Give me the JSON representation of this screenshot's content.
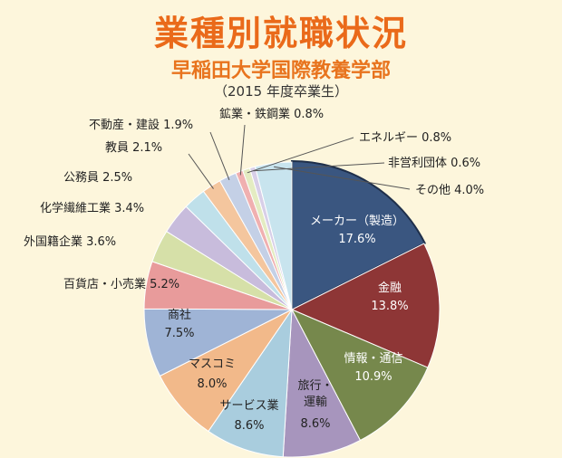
{
  "header": {
    "title": "業種別就職状況",
    "subtitle": "早稲田大学国際教養学部",
    "note": "（2015 年度卒業生）"
  },
  "chart_data": {
    "type": "pie",
    "title": "業種別就職状況",
    "subtitle": "早稲田大学国際教養学部",
    "note": "（2015 年度卒業生）",
    "unit": "%",
    "slices": [
      {
        "name": "メーカー（製造）",
        "value": 17.6,
        "label": "メーカー（製造）",
        "pct": "17.6%",
        "color": "#3a5680",
        "text_color": "#ffffff",
        "placement": "inside"
      },
      {
        "name": "金融",
        "value": 13.8,
        "label": "金融",
        "pct": "13.8%",
        "color": "#8e3636",
        "text_color": "#ffffff",
        "placement": "inside"
      },
      {
        "name": "情報・通信",
        "value": 10.9,
        "label": "情報・通信",
        "pct": "10.9%",
        "color": "#76884c",
        "text_color": "#ffffff",
        "placement": "inside"
      },
      {
        "name": "旅行・運輸",
        "value": 8.6,
        "label": "旅行・運輸",
        "pct": "8.6%",
        "color": "#a795bd",
        "text_color": "#222222",
        "placement": "inside"
      },
      {
        "name": "サービス業",
        "value": 8.6,
        "label": "サービス業",
        "pct": "8.6%",
        "color": "#a9cdde",
        "text_color": "#222222",
        "placement": "inside"
      },
      {
        "name": "マスコミ",
        "value": 8.0,
        "label": "マスコミ",
        "pct": "8.0%",
        "color": "#f2b98a",
        "text_color": "#222222",
        "placement": "inside"
      },
      {
        "name": "商社",
        "value": 7.5,
        "label": "商社",
        "pct": "7.5%",
        "color": "#9fb4d6",
        "text_color": "#222222",
        "placement": "inside"
      },
      {
        "name": "百貨店・小売業",
        "value": 5.2,
        "label": "百貨店・小売業 5.2%",
        "color": "#e89b9b",
        "placement": "outside"
      },
      {
        "name": "外国籍企業",
        "value": 3.6,
        "label": "外国籍企業 3.6%",
        "color": "#d6e0a8",
        "placement": "outside"
      },
      {
        "name": "化学繊維工業",
        "value": 3.4,
        "label": "化学繊維工業 3.4%",
        "color": "#c8bcdc",
        "placement": "outside"
      },
      {
        "name": "公務員",
        "value": 2.5,
        "label": "公務員 2.5%",
        "color": "#bfe0ea",
        "placement": "outside"
      },
      {
        "name": "教員",
        "value": 2.1,
        "label": "教員 2.1%",
        "color": "#f4c69e",
        "placement": "outside"
      },
      {
        "name": "不動産・建設",
        "value": 1.9,
        "label": "不動産・建設 1.9%",
        "color": "#c4d0e6",
        "placement": "outside"
      },
      {
        "name": "鉱業・鉄鋼業",
        "value": 0.8,
        "label": "鉱業・鉄鋼業 0.8%",
        "color": "#f0b0b0",
        "placement": "outside"
      },
      {
        "name": "エネルギー",
        "value": 0.8,
        "label": "エネルギー 0.8%",
        "color": "#e4ecc2",
        "placement": "outside"
      },
      {
        "name": "非営利団体",
        "value": 0.6,
        "label": "非営利団体 0.6%",
        "color": "#d8cfe8",
        "placement": "outside"
      },
      {
        "name": "その他",
        "value": 4.0,
        "label": "その他 4.0%",
        "color": "#c8e4ee",
        "placement": "outside"
      }
    ]
  }
}
